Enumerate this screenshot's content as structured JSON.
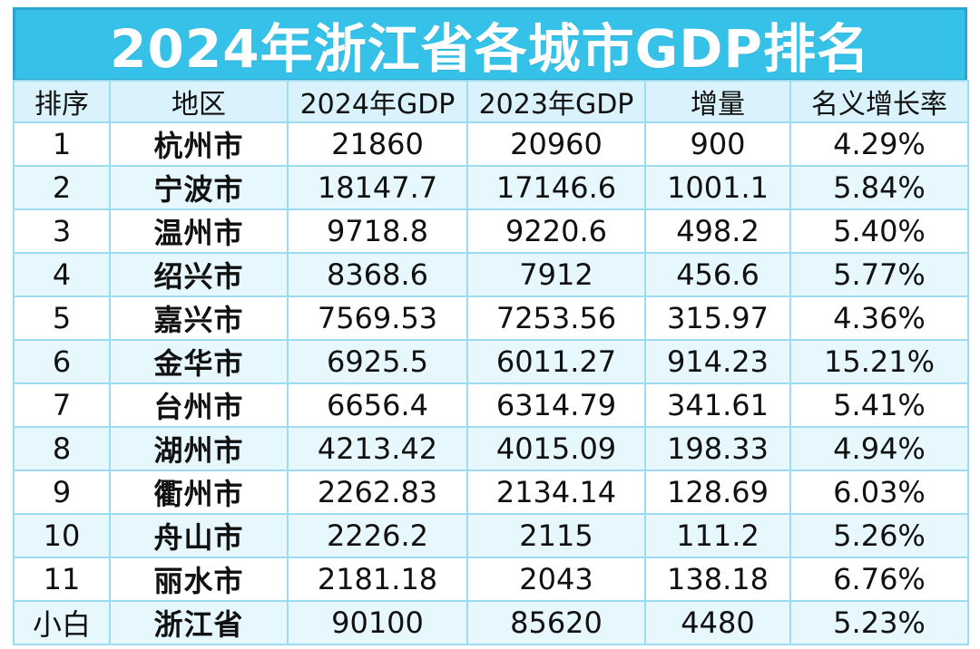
{
  "title": "2024年浙江省各城市GDP排名",
  "colors": {
    "title_bg": "#35c1e8",
    "title_text": "#ffffff",
    "grid": "#9bdcf1",
    "row_alt": "#e6f7fd"
  },
  "chart_data": {
    "type": "table",
    "title": "2024年浙江省各城市GDP排名",
    "columns": [
      "排序",
      "地区",
      "2024年GDP",
      "2023年GDP",
      "增量",
      "名义增长率"
    ],
    "rows": [
      [
        "1",
        "杭州市",
        "21860",
        "20960",
        "900",
        "4.29%"
      ],
      [
        "2",
        "宁波市",
        "18147.7",
        "17146.6",
        "1001.1",
        "5.84%"
      ],
      [
        "3",
        "温州市",
        "9718.8",
        "9220.6",
        "498.2",
        "5.40%"
      ],
      [
        "4",
        "绍兴市",
        "8368.6",
        "7912",
        "456.6",
        "5.77%"
      ],
      [
        "5",
        "嘉兴市",
        "7569.53",
        "7253.56",
        "315.97",
        "4.36%"
      ],
      [
        "6",
        "金华市",
        "6925.5",
        "6011.27",
        "914.23",
        "15.21%"
      ],
      [
        "7",
        "台州市",
        "6656.4",
        "6314.79",
        "341.61",
        "5.41%"
      ],
      [
        "8",
        "湖州市",
        "4213.42",
        "4015.09",
        "198.33",
        "4.94%"
      ],
      [
        "9",
        "衢州市",
        "2262.83",
        "2134.14",
        "128.69",
        "6.03%"
      ],
      [
        "10",
        "舟山市",
        "2226.2",
        "2115",
        "111.2",
        "5.26%"
      ],
      [
        "11",
        "丽水市",
        "2181.18",
        "2043",
        "138.18",
        "6.76%"
      ],
      [
        "小白",
        "浙江省",
        "90100",
        "85620",
        "4480",
        "5.23%"
      ]
    ]
  }
}
